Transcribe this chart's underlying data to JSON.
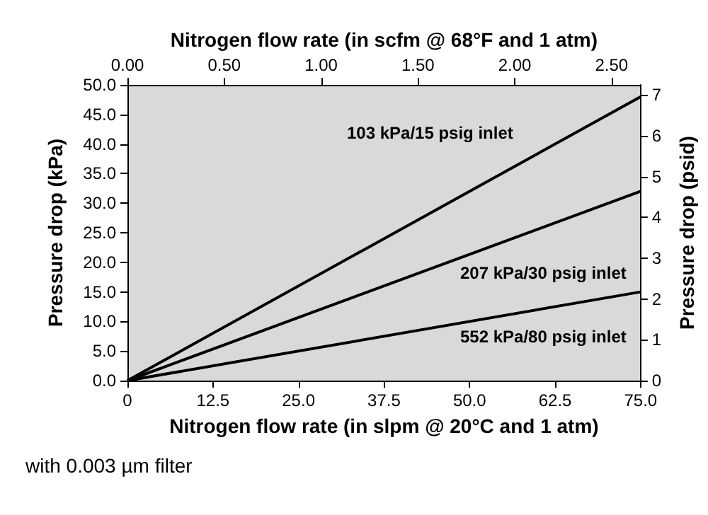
{
  "chart_data": {
    "type": "line",
    "xlabel": "Nitrogen flow rate (in slpm @ 20°C and 1 atm)",
    "x2label": "Nitrogen flow rate (in scfm @ 68°F and 1 atm)",
    "ylabel": "Pressure drop (kPa)",
    "y2label": "Pressure drop (psid)",
    "x": [
      0,
      75
    ],
    "series": [
      {
        "color": "#000000",
        "values": [
          0,
          48
        ]
      },
      {
        "color": "#000000",
        "values": [
          0,
          32
        ]
      },
      {
        "color": "#000000",
        "values": [
          0,
          15
        ]
      }
    ],
    "xlim": [
      0,
      75
    ],
    "xticks": [
      0,
      12.5,
      {
        "value": 25,
        "label": "25.0"
      },
      37.5,
      {
        "value": 50,
        "label": "50.0"
      },
      62.5,
      {
        "value": 75,
        "label": "75.0"
      }
    ],
    "x2lim": [
      0,
      2.65
    ],
    "x2ticks": [
      {
        "value": 0,
        "label": "0.00"
      },
      {
        "value": 0.5,
        "label": "0.50"
      },
      {
        "value": 1,
        "label": "1.00"
      },
      {
        "value": 1.5,
        "label": "1.50"
      },
      {
        "value": 2,
        "label": "2.00"
      },
      {
        "value": 2.5,
        "label": "2.50"
      }
    ],
    "ylim": [
      0,
      50
    ],
    "yticks": [
      {
        "value": 0,
        "label": "0.0"
      },
      {
        "value": 5,
        "label": "5.0"
      },
      {
        "value": 10,
        "label": "10.0"
      },
      {
        "value": 15,
        "label": "15.0"
      },
      {
        "value": 20,
        "label": "20.0"
      },
      {
        "value": 25,
        "label": "25.0"
      },
      {
        "value": 30,
        "label": "30.0"
      },
      {
        "value": 35,
        "label": "35.0"
      },
      {
        "value": 40,
        "label": "40.0"
      },
      {
        "value": 45,
        "label": "45.0"
      },
      {
        "value": 50,
        "label": "50.0"
      }
    ],
    "y2lim": [
      0,
      7.25
    ],
    "y2ticks": [
      0,
      1,
      2,
      3,
      4,
      5,
      6,
      7
    ],
    "annotations": [
      "103 kPa/15 psig inlet",
      "207 kPa/30 psig inlet",
      "552 kPa/80 psig inlet",
      "with 0.003 µm filter"
    ]
  }
}
